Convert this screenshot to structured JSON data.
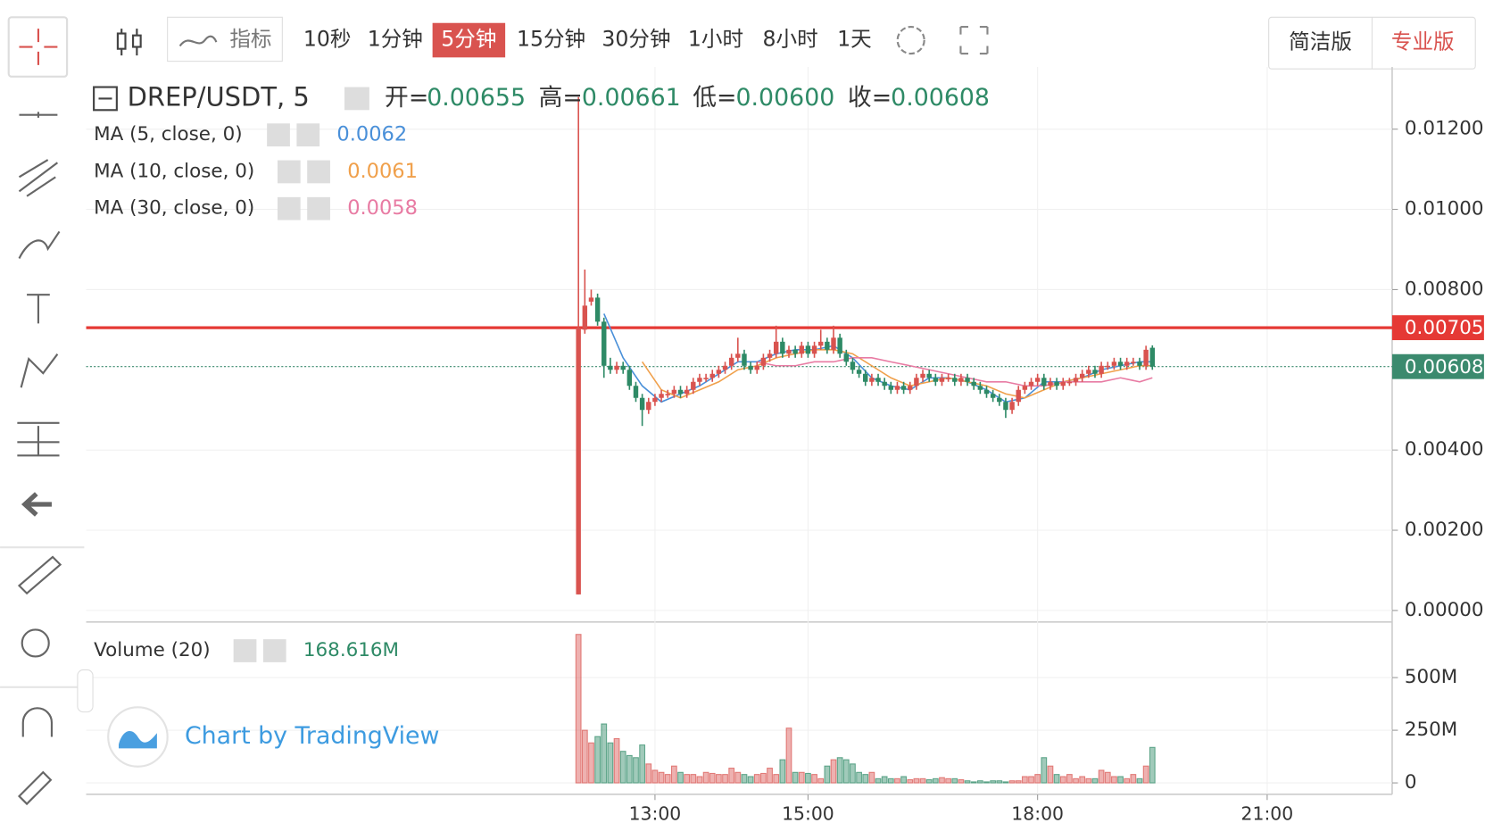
{
  "toolbar": {
    "indicators": "指标",
    "intervals": [
      "10秒",
      "1分钟",
      "5分钟",
      "15分钟",
      "30分钟",
      "1小时",
      "8小时",
      "1天"
    ],
    "views": [
      "简洁版",
      "专业版"
    ]
  },
  "chart_data": {
    "type": "candlestick",
    "symbol": "DREP/USDT, 5",
    "ohlc_labels": [
      "开=",
      "高=",
      "低=",
      "收="
    ],
    "ohlc_values": [
      0.00655,
      0.00661,
      {
        "value": 0.006,
        "label": "0.00600"
      },
      0.00608
    ],
    "up_color": "#d9534f",
    "down_color": "#2e8a66",
    "x": [
      "12:00",
      "12:05",
      "12:10",
      "12:15",
      "12:20",
      "12:25",
      "12:30",
      "12:35",
      "12:40",
      "12:45",
      "12:50",
      "12:55",
      "13:00",
      "13:05",
      "13:10",
      "13:15",
      "13:20",
      "13:25",
      "13:30",
      "13:35",
      "13:40",
      "13:45",
      "13:50",
      "13:55",
      "14:00",
      "14:05",
      "14:10",
      "14:15",
      "14:20",
      "14:25",
      "14:30",
      "14:35",
      "14:40",
      "14:45",
      "14:50",
      "14:55",
      "15:00",
      "15:05",
      "15:10",
      "15:15",
      "15:20",
      "15:25",
      "15:30",
      "15:35",
      "15:40",
      "15:45",
      "15:50",
      "15:55",
      "16:00",
      "16:05",
      "16:10",
      "16:15",
      "16:20",
      "16:25",
      "16:30",
      "16:35",
      "16:40",
      "16:45",
      "16:50",
      "16:55",
      "17:00",
      "17:05",
      "17:10",
      "17:15",
      "17:20",
      "17:25",
      "17:30",
      "17:35",
      "17:40",
      "17:45",
      "17:50",
      "17:55",
      "18:00",
      "18:05",
      "18:10",
      "18:15",
      "18:20",
      "18:25",
      "18:30",
      "18:35",
      "18:40",
      "18:45",
      "18:50",
      "18:55",
      "19:00",
      "19:05",
      "19:10",
      "19:15",
      "19:20",
      "19:25",
      "19:30"
    ],
    "ohlc": [
      [
        0.0004,
        0.0128,
        0.0004,
        0.00705
      ],
      [
        0.007,
        0.0085,
        0.0069,
        0.0076
      ],
      [
        0.0077,
        0.008,
        0.0076,
        0.0078
      ],
      [
        0.0078,
        0.0079,
        0.0071,
        0.0072
      ],
      [
        0.0072,
        0.0073,
        0.0058,
        0.0061
      ],
      [
        0.0061,
        0.0063,
        0.0059,
        0.006
      ],
      [
        0.006,
        0.0062,
        0.0059,
        0.0061
      ],
      [
        0.0061,
        0.0062,
        0.0059,
        0.006
      ],
      [
        0.006,
        0.0061,
        0.0055,
        0.0056
      ],
      [
        0.0056,
        0.0057,
        0.0052,
        0.0053
      ],
      [
        0.0053,
        0.0054,
        0.0046,
        0.005
      ],
      [
        0.005,
        0.0053,
        0.0049,
        0.0052
      ],
      [
        0.0052,
        0.0054,
        0.0051,
        0.0053
      ],
      [
        0.0053,
        0.0055,
        0.0052,
        0.0054
      ],
      [
        0.0054,
        0.0055,
        0.0053,
        0.0054
      ],
      [
        0.0054,
        0.0056,
        0.0053,
        0.0055
      ],
      [
        0.0055,
        0.0056,
        0.0053,
        0.0054
      ],
      [
        0.0054,
        0.0056,
        0.0053,
        0.0055
      ],
      [
        0.0055,
        0.0058,
        0.0054,
        0.0057
      ],
      [
        0.0057,
        0.0059,
        0.0056,
        0.0058
      ],
      [
        0.0058,
        0.0059,
        0.0057,
        0.0058
      ],
      [
        0.0058,
        0.006,
        0.0057,
        0.0059
      ],
      [
        0.0059,
        0.0061,
        0.0058,
        0.006
      ],
      [
        0.006,
        0.0062,
        0.0059,
        0.0061
      ],
      [
        0.0061,
        0.0064,
        0.006,
        0.0063
      ],
      [
        0.0063,
        0.0068,
        0.0062,
        0.0064
      ],
      [
        0.0064,
        0.0065,
        0.006,
        0.0061
      ],
      [
        0.0061,
        0.0062,
        0.0059,
        0.006
      ],
      [
        0.006,
        0.0062,
        0.0059,
        0.0061
      ],
      [
        0.0061,
        0.0064,
        0.006,
        0.0063
      ],
      [
        0.0063,
        0.0065,
        0.0062,
        0.0064
      ],
      [
        0.0064,
        0.0071,
        0.0063,
        0.0067
      ],
      [
        0.0067,
        0.0068,
        0.0063,
        0.0064
      ],
      [
        0.0064,
        0.0066,
        0.0063,
        0.0065
      ],
      [
        0.0065,
        0.0066,
        0.0063,
        0.0064
      ],
      [
        0.0064,
        0.0067,
        0.0063,
        0.0066
      ],
      [
        0.0066,
        0.0067,
        0.0063,
        0.0064
      ],
      [
        0.0064,
        0.0067,
        0.0063,
        0.0066
      ],
      [
        0.0066,
        0.007,
        0.0065,
        0.0067
      ],
      [
        0.0067,
        0.0068,
        0.0064,
        0.0065
      ],
      [
        0.0065,
        0.0071,
        0.0064,
        0.0068
      ],
      [
        0.0068,
        0.0069,
        0.0063,
        0.0064
      ],
      [
        0.0064,
        0.0065,
        0.0061,
        0.0062
      ],
      [
        0.0062,
        0.0063,
        0.0059,
        0.006
      ],
      [
        0.006,
        0.0061,
        0.0058,
        0.0059
      ],
      [
        0.0059,
        0.006,
        0.0056,
        0.0057
      ],
      [
        0.0057,
        0.0059,
        0.0056,
        0.0058
      ],
      [
        0.0058,
        0.0059,
        0.0056,
        0.0057
      ],
      [
        0.0057,
        0.0058,
        0.0055,
        0.0056
      ],
      [
        0.0056,
        0.0057,
        0.0054,
        0.0055
      ],
      [
        0.0055,
        0.0057,
        0.0054,
        0.0056
      ],
      [
        0.0056,
        0.0057,
        0.0054,
        0.0055
      ],
      [
        0.0055,
        0.0057,
        0.0054,
        0.0056
      ],
      [
        0.0056,
        0.0059,
        0.0055,
        0.0058
      ],
      [
        0.0058,
        0.006,
        0.0057,
        0.0059
      ],
      [
        0.0059,
        0.006,
        0.0057,
        0.0058
      ],
      [
        0.0058,
        0.0059,
        0.0056,
        0.0057
      ],
      [
        0.0057,
        0.0059,
        0.0056,
        0.0058
      ],
      [
        0.0058,
        0.0059,
        0.0057,
        0.0058
      ],
      [
        0.0058,
        0.0059,
        0.0056,
        0.0057
      ],
      [
        0.0057,
        0.0059,
        0.0056,
        0.0058
      ],
      [
        0.0058,
        0.0059,
        0.0056,
        0.0057
      ],
      [
        0.0057,
        0.0058,
        0.0055,
        0.0056
      ],
      [
        0.0056,
        0.0057,
        0.0054,
        0.0055
      ],
      [
        0.0055,
        0.0056,
        0.0053,
        0.0054
      ],
      [
        0.0054,
        0.0055,
        0.0052,
        0.0053
      ],
      [
        0.0053,
        0.0054,
        0.0051,
        0.0052
      ],
      [
        0.0052,
        0.0053,
        0.0048,
        0.005
      ],
      [
        0.005,
        0.0053,
        0.0049,
        0.0052
      ],
      [
        0.0052,
        0.0056,
        0.0051,
        0.0055
      ],
      [
        0.0055,
        0.0057,
        0.0054,
        0.0056
      ],
      [
        0.0056,
        0.0058,
        0.0055,
        0.0057
      ],
      [
        0.0057,
        0.0059,
        0.0056,
        0.0058
      ],
      [
        0.0058,
        0.0059,
        0.0055,
        0.0056
      ],
      [
        0.0056,
        0.0058,
        0.0055,
        0.0057
      ],
      [
        0.0057,
        0.0058,
        0.0055,
        0.0056
      ],
      [
        0.0056,
        0.0058,
        0.0055,
        0.0057
      ],
      [
        0.0057,
        0.0058,
        0.0056,
        0.0057
      ],
      [
        0.0057,
        0.0059,
        0.0056,
        0.0058
      ],
      [
        0.0058,
        0.006,
        0.0057,
        0.0059
      ],
      [
        0.0059,
        0.0061,
        0.0058,
        0.006
      ],
      [
        0.006,
        0.0061,
        0.0058,
        0.0059
      ],
      [
        0.0059,
        0.0062,
        0.0058,
        0.0061
      ],
      [
        0.0061,
        0.0062,
        0.006,
        0.0061
      ],
      [
        0.0061,
        0.0063,
        0.006,
        0.0062
      ],
      [
        0.0062,
        0.0063,
        0.006,
        0.0061
      ],
      [
        0.0061,
        0.0063,
        0.006,
        0.0062
      ],
      [
        0.0062,
        0.0063,
        0.0061,
        0.0062
      ],
      [
        0.0062,
        0.0063,
        0.006,
        0.0061
      ],
      [
        0.0061,
        0.0066,
        0.006,
        0.0065
      ],
      [
        0.00655,
        0.00661,
        0.006,
        0.00608
      ]
    ],
    "ma": {
      "x": [
        "12:20",
        "12:35",
        "12:50",
        "13:05",
        "13:20",
        "13:35",
        "13:50",
        "14:05",
        "14:20",
        "14:35",
        "14:50",
        "15:05",
        "15:20",
        "15:35",
        "15:50",
        "16:05",
        "16:20",
        "16:35",
        "16:50",
        "17:05",
        "17:20",
        "17:35",
        "17:50",
        "18:05",
        "18:20",
        "18:35",
        "18:50",
        "19:05",
        "19:20",
        "19:30"
      ],
      "series": [
        {
          "name": "MA (5, close, 0)",
          "color": "#4a90d9",
          "current": 0.0062,
          "values": [
            0.0074,
            0.0063,
            0.0056,
            0.0052,
            0.0054,
            0.0056,
            0.0059,
            0.0062,
            0.0062,
            0.0064,
            0.0065,
            0.0065,
            0.0066,
            0.0063,
            0.0058,
            0.0056,
            0.0055,
            0.0058,
            0.0058,
            0.0057,
            0.0055,
            0.0052,
            0.0053,
            0.0057,
            0.0057,
            0.0058,
            0.006,
            0.0061,
            0.0062,
            0.0062
          ]
        },
        {
          "name": "MA (10, close, 0)",
          "color": "#f0a04b",
          "current": 0.0061,
          "values": [
            null,
            null,
            0.0062,
            0.0055,
            0.0053,
            0.0055,
            0.0057,
            0.006,
            0.0061,
            0.0063,
            0.0064,
            0.0065,
            0.0065,
            0.0064,
            0.0061,
            0.0058,
            0.0056,
            0.0057,
            0.0058,
            0.0057,
            0.0056,
            0.0054,
            0.0053,
            0.0055,
            0.0057,
            0.0058,
            0.0059,
            0.006,
            0.0061,
            0.0061
          ]
        },
        {
          "name": "MA (30, close, 0)",
          "color": "#e87ba3",
          "current": 0.0058,
          "values": [
            null,
            null,
            null,
            null,
            null,
            null,
            null,
            null,
            0.0062,
            0.0061,
            0.0061,
            0.0062,
            0.0062,
            0.0063,
            0.0063,
            0.0062,
            0.0061,
            0.006,
            0.0059,
            0.0058,
            0.0057,
            0.0057,
            0.0056,
            0.0056,
            0.0057,
            0.0057,
            0.0057,
            0.0058,
            0.0057,
            0.0058
          ]
        }
      ]
    },
    "price_lines": [
      {
        "value": 0.00705,
        "color": "#e53935"
      },
      {
        "value": 0.00608,
        "color": "#3b8a6e"
      }
    ],
    "xlim": [
      "05:34",
      "22:38"
    ],
    "xticks": [
      "13:00",
      "15:00",
      "18:00",
      "21:00"
    ],
    "ylim": [
      -5e-05,
      0.01355
    ],
    "yticks": [
      {
        "value": 0,
        "label": "0.00000"
      },
      {
        "value": 0.002,
        "label": "0.00200"
      },
      {
        "value": 0.004,
        "label": "0.00400"
      },
      {
        "value": 0.008,
        "label": "0.00800"
      },
      {
        "value": 0.01,
        "label": "0.01000"
      },
      {
        "value": 0.012,
        "label": "0.01200"
      }
    ],
    "volume": {
      "name": "Volume (20)",
      "current": 168.616,
      "current_label": "168.616M",
      "ylim": [
        -45,
        741
      ],
      "yticks": [
        0,
        {
          "value": 250,
          "label": "250M"
        },
        {
          "value": 500,
          "label": "500M"
        }
      ],
      "values": [
        705,
        250,
        190,
        220,
        280,
        190,
        210,
        150,
        130,
        120,
        180,
        90,
        60,
        50,
        40,
        80,
        50,
        40,
        40,
        30,
        50,
        45,
        40,
        40,
        70,
        50,
        40,
        30,
        40,
        45,
        70,
        40,
        110,
        260,
        50,
        50,
        45,
        40,
        20,
        80,
        110,
        120,
        110,
        90,
        50,
        40,
        50,
        20,
        30,
        20,
        20,
        30,
        15,
        20,
        20,
        15,
        20,
        25,
        20,
        20,
        15,
        10,
        5,
        10,
        5,
        10,
        10,
        5,
        10,
        10,
        30,
        30,
        40,
        120,
        80,
        40,
        30,
        40,
        20,
        30,
        20,
        20,
        60,
        50,
        30,
        30,
        20,
        40,
        20,
        80,
        168.616
      ]
    },
    "watermark": "Chart by TradingView"
  }
}
